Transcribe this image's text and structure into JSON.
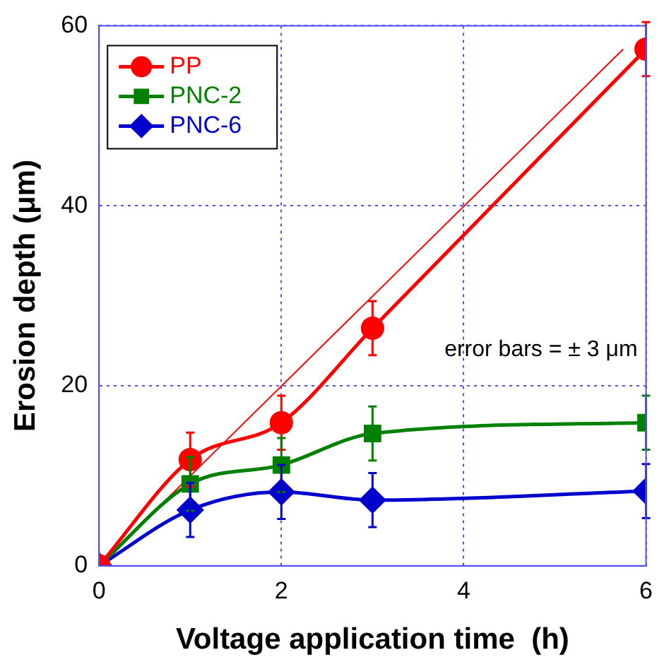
{
  "chart_data": {
    "type": "line",
    "xlabel": "Voltage application time  (h)",
    "ylabel": "Erosion depth (μm)",
    "x": [
      0,
      1,
      2,
      3,
      6
    ],
    "xlim": [
      0,
      6
    ],
    "xticks": [
      0,
      2,
      4,
      6
    ],
    "ylim": [
      0,
      60
    ],
    "yticks": [
      0,
      20,
      40,
      60
    ],
    "grid": true,
    "legend": "top left",
    "line_style": "solid",
    "series": [
      {
        "name": "PP",
        "color": "#ff0000",
        "marker": "circle",
        "values": [
          0,
          11.8,
          15.9,
          26.4,
          57.4
        ],
        "errors": [
          null,
          3,
          3,
          3,
          3
        ]
      },
      {
        "name": "PNC-2",
        "color": "#008000",
        "marker": "square",
        "values": [
          0,
          9.1,
          11.2,
          14.7,
          15.9
        ],
        "errors": [
          null,
          3,
          3,
          3,
          3
        ]
      },
      {
        "name": "PNC-6",
        "color": "#0000cc",
        "marker": "diamond",
        "values": [
          0,
          6.2,
          8.2,
          7.3,
          8.3
        ],
        "errors": [
          null,
          3,
          3,
          3,
          3
        ]
      },
      {
        "type": "line",
        "color": "#ff0000",
        "marker": "none",
        "x": [
          0,
          5.75
        ],
        "values": [
          0,
          57.4
        ]
      }
    ],
    "annotations": [
      "error bars = ± 3 μm"
    ]
  }
}
